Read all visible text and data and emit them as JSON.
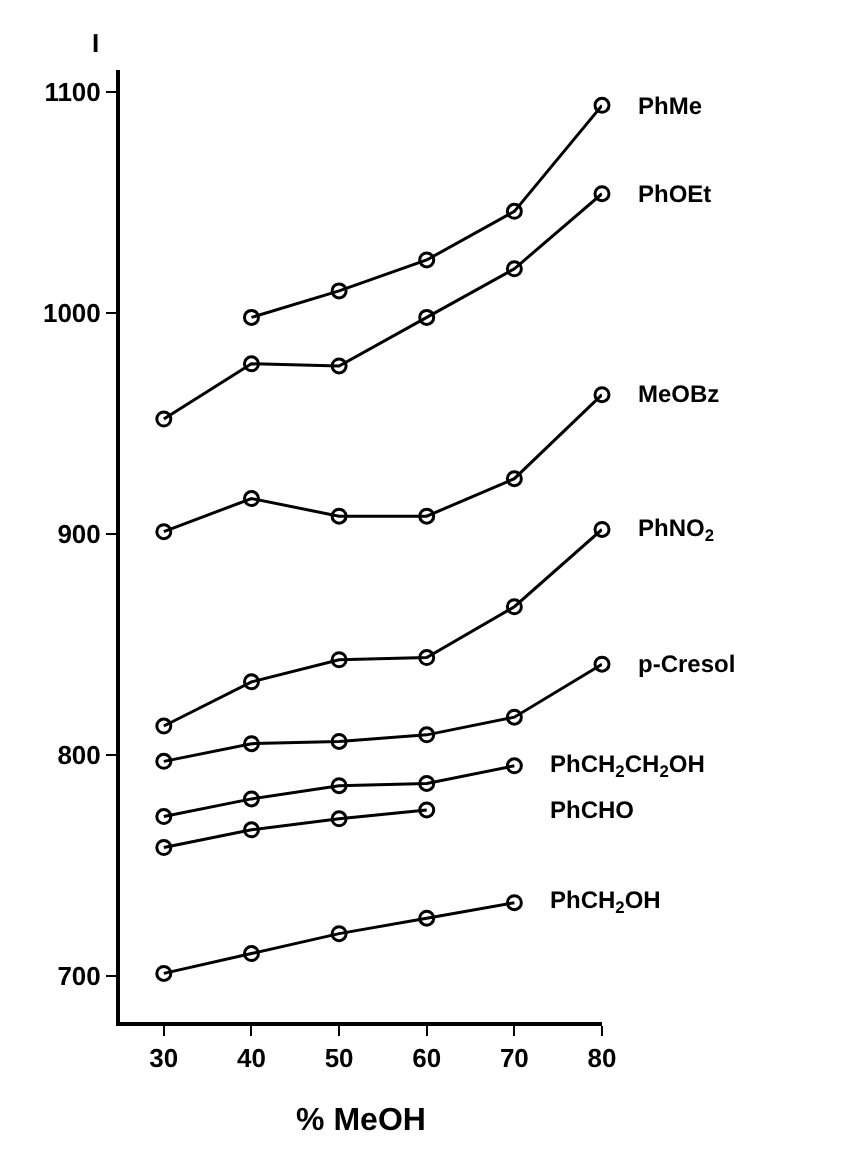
{
  "chart_data": {
    "type": "line",
    "xlabel": "% MeOH",
    "ylabel": "I",
    "xlim": [
      25,
      80
    ],
    "xticks": [
      30,
      40,
      50,
      60,
      70,
      80
    ],
    "ylim": [
      679,
      1110
    ],
    "yticks": [
      700,
      800,
      900,
      1000,
      1100
    ],
    "grid": false,
    "legend": false,
    "marker": "circle",
    "line_style": "solid",
    "series": [
      {
        "name": "PhMe",
        "color": "#000000",
        "x": [
          40,
          50,
          60,
          70,
          80
        ],
        "values": [
          998,
          1010,
          1024,
          1046,
          1094
        ]
      },
      {
        "name": "PhOEt",
        "color": "#000000",
        "x": [
          30,
          40,
          50,
          60,
          70,
          80
        ],
        "values": [
          952,
          977,
          976,
          998,
          1020,
          1054
        ]
      },
      {
        "name": "MeOBz",
        "color": "#000000",
        "x": [
          30,
          40,
          50,
          60,
          70,
          80
        ],
        "values": [
          901,
          916,
          908,
          908,
          925,
          963
        ]
      },
      {
        "name": "PhNO$_{2}$",
        "color": "#000000",
        "x": [
          30,
          40,
          50,
          60,
          70,
          80
        ],
        "values": [
          813,
          833,
          843,
          844,
          867,
          902
        ]
      },
      {
        "name": "p-Cresol",
        "color": "#000000",
        "x": [
          30,
          40,
          50,
          60,
          70,
          80
        ],
        "values": [
          797,
          805,
          806,
          809,
          817,
          841
        ]
      },
      {
        "name": "PhCH$_{2}$CH$_{2}$OH",
        "color": "#000000",
        "x": [
          30,
          40,
          50,
          60,
          70
        ],
        "values": [
          772,
          780,
          786,
          787,
          795
        ]
      },
      {
        "name": "PhCHO",
        "color": "#000000",
        "x": [
          30,
          40,
          50,
          60
        ],
        "values": [
          758,
          766,
          771,
          775
        ]
      },
      {
        "name": "PhCH$_{2}$OH",
        "color": "#000000",
        "x": [
          30,
          40,
          50,
          60,
          70
        ],
        "values": [
          701,
          710,
          719,
          726,
          733
        ]
      }
    ]
  }
}
